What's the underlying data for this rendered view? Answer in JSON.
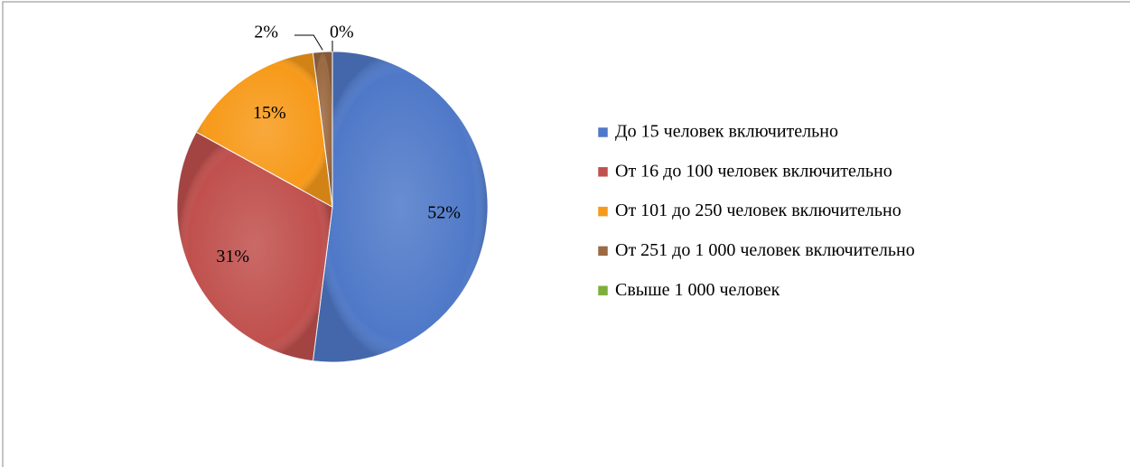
{
  "chart_data": {
    "type": "pie",
    "categories": [
      "До 15 человек включительно",
      "От 16 до 100 человек включительно",
      "От 101 до 250 человек включительно",
      "От 251 до 1 000 человек включительно",
      "Свыше 1 000 человек"
    ],
    "values": [
      52,
      31,
      15,
      2,
      0
    ],
    "value_labels": [
      "52%",
      "31%",
      "15%",
      "2%",
      "0%"
    ],
    "colors": [
      "#4f79c8",
      "#c0504d",
      "#f79a1a",
      "#9b6a42",
      "#7fae3c"
    ],
    "legend": "right"
  }
}
